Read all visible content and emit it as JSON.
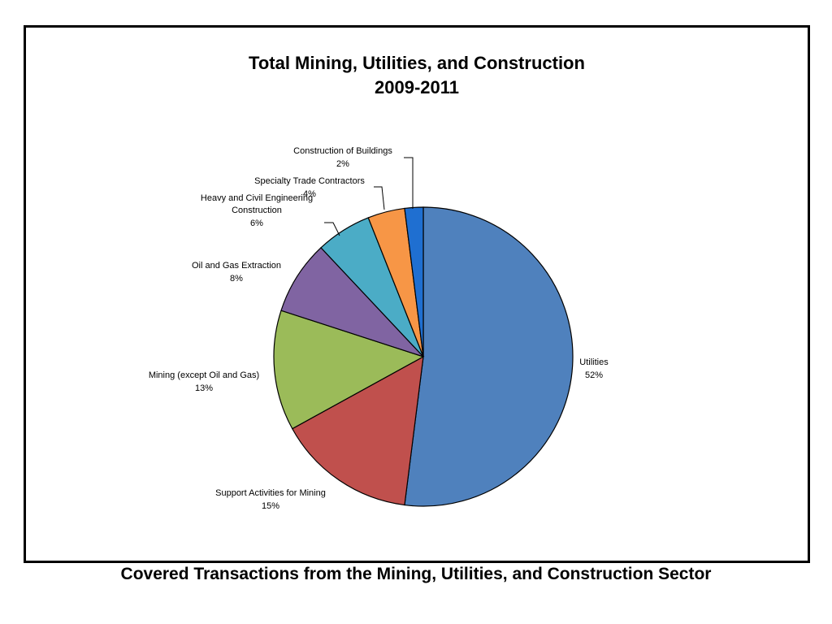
{
  "chart_data": {
    "type": "pie",
    "title": "Total Mining, Utilities, and Construction",
    "subtitle": "2009-2011",
    "slices": [
      {
        "label": "Utilities",
        "pct_label": "52%",
        "value": 52,
        "color": "#4F81BD"
      },
      {
        "label": "Support Activities for Mining",
        "pct_label": "15%",
        "value": 15,
        "color": "#C0504D"
      },
      {
        "label": "Mining (except Oil and Gas)",
        "pct_label": "13%",
        "value": 13,
        "color": "#9BBB59"
      },
      {
        "label": "Oil and Gas Extraction",
        "pct_label": "8%",
        "value": 8,
        "color": "#8064A2"
      },
      {
        "label": "Heavy and Civil Engineering Construction",
        "pct_label": "6%",
        "value": 6,
        "color": "#4BACC6"
      },
      {
        "label": "Specialty Trade Contractors",
        "pct_label": "4%",
        "value": 4,
        "color": "#F79646"
      },
      {
        "label": "Construction of Buildings",
        "pct_label": "2%",
        "value": 2,
        "color": "#1F6FD1"
      }
    ]
  },
  "caption": "Covered Transactions from the Mining, Utilities, and Construction Sector"
}
